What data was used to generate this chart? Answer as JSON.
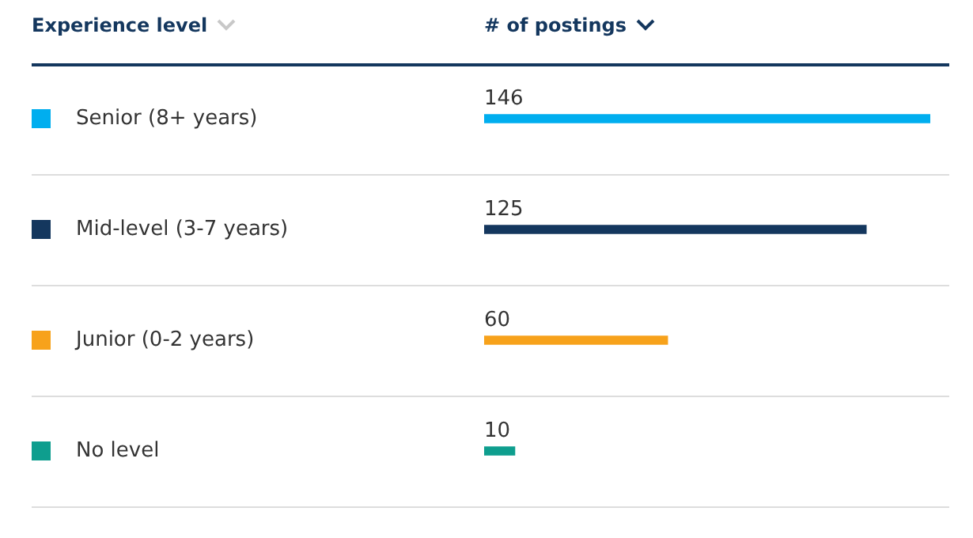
{
  "chart_data": {
    "type": "bar",
    "orientation": "horizontal",
    "annotations": [
      "Experience level",
      "# of postings"
    ],
    "categories": [
      "Senior (8+ years)",
      "Mid-level (3-7 years)",
      "Junior (0-2 years)",
      "No level"
    ],
    "values": [
      146,
      125,
      60,
      10
    ],
    "colors": [
      "#00aeef",
      "#14375e",
      "#f7a21b",
      "#0e9e8e"
    ],
    "data_labels": true,
    "grid": "y",
    "tick_labels": "y"
  }
}
